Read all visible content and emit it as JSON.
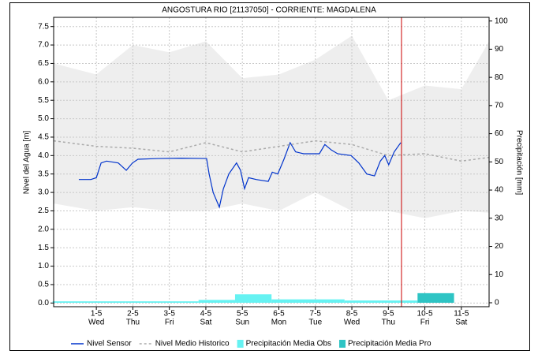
{
  "chart_data": {
    "type": "line",
    "title": "ANGOSTURA RIO   [21137050] - CORRIENTE: MAGDALENA",
    "ylabel": "Nivel del Agua [m]",
    "y2label": "Precipitación [mm]",
    "xlim": [
      -0.17,
      11.76
    ],
    "xticks": [
      {
        "value": 1,
        "label": "1-5"
      },
      {
        "value": 2,
        "label": "2-5"
      },
      {
        "value": 3,
        "label": "3-5"
      },
      {
        "value": 4,
        "label": "4-5"
      },
      {
        "value": 5,
        "label": "5-5"
      },
      {
        "value": 6,
        "label": "6-5"
      },
      {
        "value": 7,
        "label": "7-5"
      },
      {
        "value": 8,
        "label": "8-5"
      },
      {
        "value": 9,
        "label": "9-5"
      },
      {
        "value": 10,
        "label": "10-5"
      },
      {
        "value": 11,
        "label": "11-5"
      }
    ],
    "xtick_sublabels": [
      "Wed",
      "Thu",
      "Fri",
      "Sat",
      "Sun",
      "Mon",
      "Tue",
      "Wed",
      "Thu",
      "Fri",
      "Sat"
    ],
    "ylim": [
      -0.1,
      7.75
    ],
    "yticks": [
      {
        "value": 0,
        "label": "0.0"
      },
      0.5,
      {
        "value": 1,
        "label": "1.0"
      },
      1.5,
      {
        "value": 2,
        "label": "2.0"
      },
      2.5,
      {
        "value": 3,
        "label": "3.0"
      },
      3.5,
      {
        "value": 4,
        "label": "4.0"
      },
      4.5,
      {
        "value": 5,
        "label": "5.0"
      },
      5.5,
      {
        "value": 6,
        "label": "6.0"
      },
      6.5,
      {
        "value": 7,
        "label": "7.0"
      },
      7.5
    ],
    "y2lim": [
      -1.4,
      101.3
    ],
    "y2ticks": [
      0,
      10,
      20,
      30,
      40,
      50,
      60,
      70,
      80,
      90,
      100
    ],
    "grid": true,
    "band": {
      "color": "#eeeeee",
      "x": [
        -0.17,
        1,
        2,
        3,
        4,
        5,
        6,
        7,
        8,
        9,
        10,
        11,
        11.76
      ],
      "upper": [
        6.5,
        6.2,
        7.0,
        6.8,
        7.1,
        6.1,
        6.2,
        6.6,
        7.25,
        5.5,
        5.9,
        5.8,
        7.1
      ],
      "lower": [
        2.7,
        2.5,
        2.6,
        2.5,
        2.5,
        2.7,
        2.5,
        3.0,
        2.5,
        2.5,
        2.3,
        2.5,
        2.45
      ]
    },
    "now_line": {
      "x": 9.36,
      "color": "#cc0000"
    },
    "series": [
      {
        "name": "Precipitación Media Obs",
        "type": "bar",
        "axis": "y2",
        "color": "#66f2f2",
        "x": [
          0.3,
          1.3,
          2.3,
          3.3,
          4.3,
          5.3,
          6.3,
          7.3,
          8.3,
          9.3
        ],
        "values": [
          0.5,
          0.5,
          0.5,
          0.5,
          1,
          3,
          1.2,
          1.2,
          0.8,
          0.8
        ]
      },
      {
        "name": "Precipitación Media Pro",
        "type": "bar",
        "axis": "y2",
        "color": "#2ec4c4",
        "x": [
          10.3
        ],
        "values": [
          3.4
        ]
      },
      {
        "name": "Nivel Sensor",
        "type": "line",
        "color": "#0033cc",
        "x": [
          0.52,
          0.85,
          1.0,
          1.13,
          1.28,
          1.6,
          1.82,
          1.99,
          2.14,
          2.68,
          3.33,
          4.02,
          4.09,
          4.2,
          4.37,
          4.48,
          4.63,
          4.84,
          4.95,
          5.06,
          5.17,
          5.38,
          5.71,
          5.82,
          5.97,
          6.14,
          6.31,
          6.46,
          6.68,
          6.9,
          7.11,
          7.26,
          7.44,
          7.61,
          7.98,
          8.19,
          8.41,
          8.62,
          8.78,
          8.9,
          9.01,
          9.16,
          9.34
        ],
        "values": [
          3.35,
          3.35,
          3.4,
          3.8,
          3.85,
          3.8,
          3.6,
          3.8,
          3.9,
          3.92,
          3.93,
          3.92,
          3.5,
          3.0,
          2.6,
          3.1,
          3.5,
          3.8,
          3.6,
          3.1,
          3.4,
          3.35,
          3.3,
          3.55,
          3.5,
          3.9,
          4.35,
          4.1,
          4.05,
          4.05,
          4.05,
          4.3,
          4.15,
          4.05,
          4.0,
          3.8,
          3.5,
          3.45,
          3.85,
          4.0,
          3.75,
          4.1,
          4.35
        ]
      },
      {
        "name": "Nivel Medio Historico",
        "type": "line",
        "dashed": true,
        "color": "#aaaaaa",
        "x": [
          -0.17,
          1,
          2,
          3,
          4,
          5,
          6,
          7,
          8,
          9,
          10,
          11,
          11.76
        ],
        "values": [
          4.4,
          4.25,
          4.2,
          4.1,
          4.35,
          4.1,
          4.25,
          4.4,
          4.3,
          4.0,
          4.05,
          3.85,
          3.95
        ]
      }
    ]
  }
}
